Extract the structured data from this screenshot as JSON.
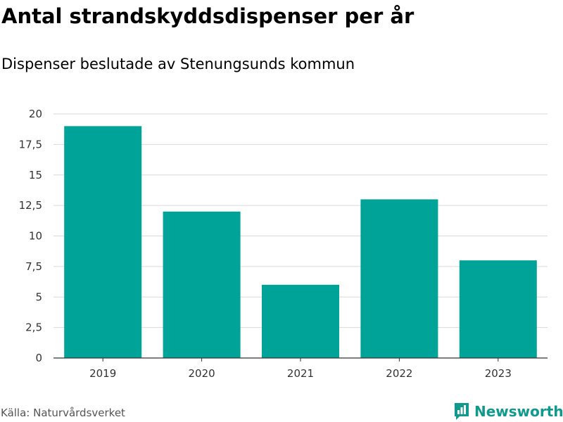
{
  "title": "Antal strandskyddsdispenser per år",
  "subtitle": "Dispenser beslutade av Stenungsunds kommun",
  "source": "Källa: Naturvårdsverket",
  "brand": {
    "name": "Newsworthy",
    "icon": "newsworthy-logo-icon",
    "color": "#0f9a8c"
  },
  "colors": {
    "bar": "#00a398",
    "grid": "#d9d9d9",
    "axis": "#333333"
  },
  "chart_data": {
    "type": "bar",
    "categories": [
      "2019",
      "2020",
      "2021",
      "2022",
      "2023"
    ],
    "values": [
      19,
      12,
      6,
      13,
      8
    ],
    "title": "Antal strandskyddsdispenser per år",
    "subtitle": "Dispenser beslutade av Stenungsunds kommun",
    "xlabel": "",
    "ylabel": "",
    "ylim": [
      0,
      20
    ],
    "yticks": [
      0,
      2.5,
      5,
      7.5,
      10,
      12.5,
      15,
      17.5,
      20
    ],
    "ytick_labels": [
      "0",
      "2,5",
      "5",
      "7,5",
      "10",
      "12,5",
      "15",
      "17,5",
      "20"
    ],
    "grid": true,
    "legend": "none"
  }
}
